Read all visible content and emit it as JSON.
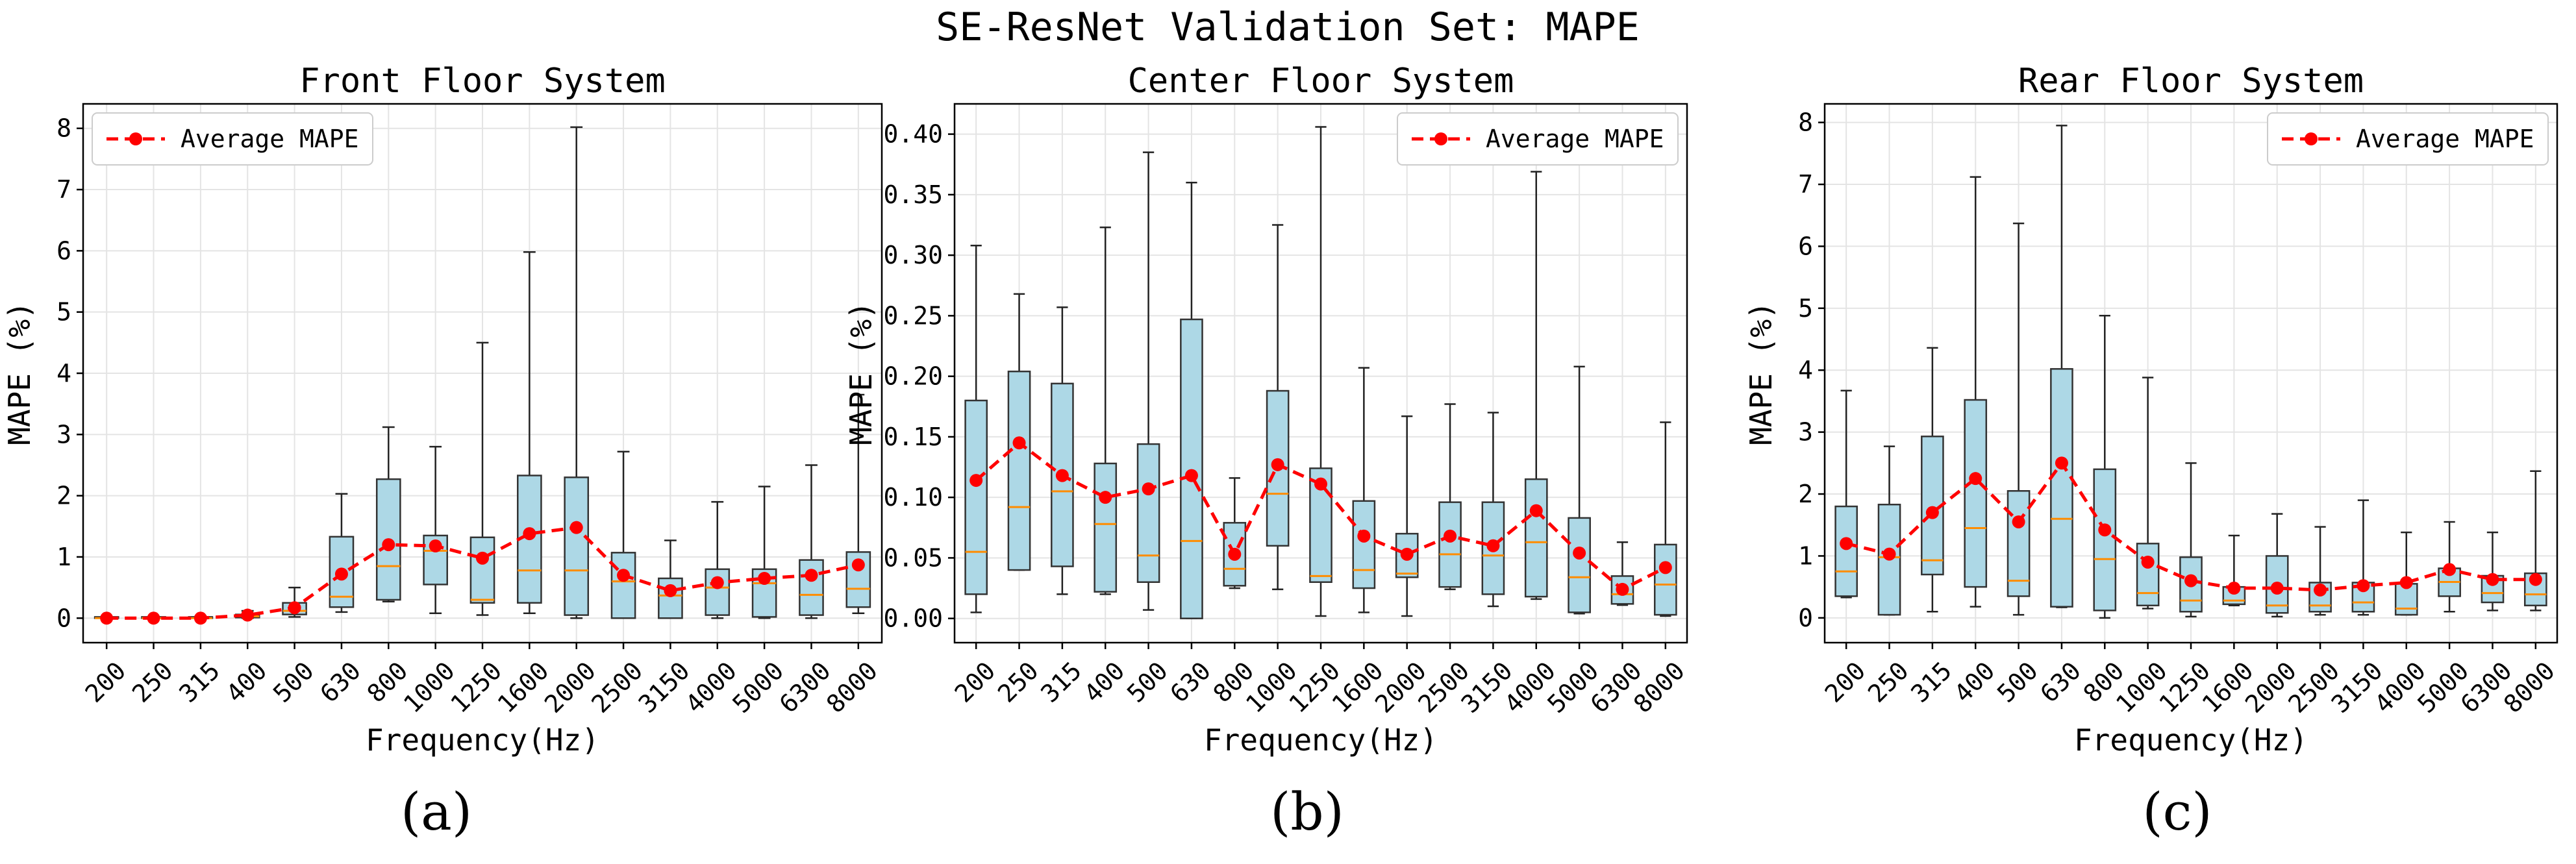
{
  "figure": {
    "suptitle": "SE-ResNet Validation Set: MAPE",
    "panel_labels": [
      "(a)",
      "(b)",
      "(c)"
    ]
  },
  "colors": {
    "box_fill": "#add8e6",
    "median": "#ff8c00",
    "average": "#ff0000"
  },
  "chart_data": [
    {
      "type": "box",
      "title": "Front Floor System",
      "xlabel": "Frequency(Hz)",
      "ylabel": "MAPE (%)",
      "legend": "Average MAPE",
      "legend_position": "upper-left",
      "ylim": [
        -0.4,
        8.4
      ],
      "yticks": [
        0,
        1,
        2,
        3,
        4,
        5,
        6,
        7,
        8
      ],
      "categories": [
        "200",
        "250",
        "315",
        "400",
        "500",
        "630",
        "800",
        "1000",
        "1250",
        "1600",
        "2000",
        "2500",
        "3150",
        "4000",
        "5000",
        "6300",
        "8000"
      ],
      "boxes": [
        {
          "min": 0.0,
          "q1": 0.0,
          "median": 0.0,
          "q3": 0.02,
          "max": 0.02
        },
        {
          "min": 0.0,
          "q1": 0.0,
          "median": 0.0,
          "q3": 0.02,
          "max": 0.02
        },
        {
          "min": 0.0,
          "q1": 0.0,
          "median": 0.0,
          "q3": 0.02,
          "max": 0.03
        },
        {
          "min": 0.0,
          "q1": 0.01,
          "median": 0.03,
          "q3": 0.06,
          "max": 0.12
        },
        {
          "min": 0.02,
          "q1": 0.06,
          "median": 0.12,
          "q3": 0.25,
          "max": 0.5
        },
        {
          "min": 0.1,
          "q1": 0.18,
          "median": 0.35,
          "q3": 1.33,
          "max": 2.03
        },
        {
          "min": 0.27,
          "q1": 0.3,
          "median": 0.85,
          "q3": 2.27,
          "max": 3.12
        },
        {
          "min": 0.08,
          "q1": 0.55,
          "median": 1.1,
          "q3": 1.35,
          "max": 2.8
        },
        {
          "min": 0.05,
          "q1": 0.25,
          "median": 0.3,
          "q3": 1.32,
          "max": 4.5
        },
        {
          "min": 0.08,
          "q1": 0.25,
          "median": 0.78,
          "q3": 2.33,
          "max": 5.98
        },
        {
          "min": 0.0,
          "q1": 0.05,
          "median": 0.78,
          "q3": 2.3,
          "max": 8.02
        },
        {
          "min": 0.0,
          "q1": 0.0,
          "median": 0.6,
          "q3": 1.07,
          "max": 2.72
        },
        {
          "min": 0.0,
          "q1": 0.0,
          "median": 0.37,
          "q3": 0.65,
          "max": 1.27
        },
        {
          "min": 0.0,
          "q1": 0.05,
          "median": 0.5,
          "q3": 0.8,
          "max": 1.9
        },
        {
          "min": 0.0,
          "q1": 0.02,
          "median": 0.57,
          "q3": 0.8,
          "max": 2.15
        },
        {
          "min": 0.0,
          "q1": 0.05,
          "median": 0.38,
          "q3": 0.95,
          "max": 2.5
        },
        {
          "min": 0.08,
          "q1": 0.18,
          "median": 0.48,
          "q3": 1.08,
          "max": 3.65
        }
      ],
      "average": [
        0.0,
        0.0,
        0.0,
        0.05,
        0.17,
        0.72,
        1.2,
        1.18,
        0.98,
        1.38,
        1.48,
        0.7,
        0.45,
        0.58,
        0.65,
        0.7,
        0.87
      ]
    },
    {
      "type": "box",
      "title": "Center Floor System",
      "xlabel": "Frequency(Hz)",
      "ylabel": "MAPE (%)",
      "legend": "Average MAPE",
      "legend_position": "upper-right",
      "ylim": [
        -0.02,
        0.425
      ],
      "yticks": [
        0.0,
        0.05,
        0.1,
        0.15,
        0.2,
        0.25,
        0.3,
        0.35,
        0.4
      ],
      "ytick_labels": [
        "0.00",
        "0.05",
        "0.10",
        "0.15",
        "0.20",
        "0.25",
        "0.30",
        "0.35",
        "0.40"
      ],
      "categories": [
        "200",
        "250",
        "315",
        "400",
        "500",
        "630",
        "800",
        "1000",
        "1250",
        "1600",
        "2000",
        "2500",
        "3150",
        "4000",
        "5000",
        "6300",
        "8000"
      ],
      "boxes": [
        {
          "min": 0.005,
          "q1": 0.02,
          "median": 0.055,
          "q3": 0.18,
          "max": 0.308
        },
        {
          "min": 0.04,
          "q1": 0.04,
          "median": 0.092,
          "q3": 0.204,
          "max": 0.268
        },
        {
          "min": 0.02,
          "q1": 0.043,
          "median": 0.105,
          "q3": 0.194,
          "max": 0.257
        },
        {
          "min": 0.02,
          "q1": 0.022,
          "median": 0.078,
          "q3": 0.128,
          "max": 0.323
        },
        {
          "min": 0.007,
          "q1": 0.03,
          "median": 0.052,
          "q3": 0.144,
          "max": 0.385
        },
        {
          "min": 0.0,
          "q1": 0.0,
          "median": 0.064,
          "q3": 0.247,
          "max": 0.36
        },
        {
          "min": 0.025,
          "q1": 0.027,
          "median": 0.041,
          "q3": 0.079,
          "max": 0.116
        },
        {
          "min": 0.024,
          "q1": 0.06,
          "median": 0.103,
          "q3": 0.188,
          "max": 0.325
        },
        {
          "min": 0.002,
          "q1": 0.03,
          "median": 0.035,
          "q3": 0.124,
          "max": 0.406
        },
        {
          "min": 0.005,
          "q1": 0.025,
          "median": 0.04,
          "q3": 0.097,
          "max": 0.207
        },
        {
          "min": 0.002,
          "q1": 0.034,
          "median": 0.037,
          "q3": 0.07,
          "max": 0.167
        },
        {
          "min": 0.024,
          "q1": 0.026,
          "median": 0.053,
          "q3": 0.096,
          "max": 0.177
        },
        {
          "min": 0.01,
          "q1": 0.02,
          "median": 0.052,
          "q3": 0.096,
          "max": 0.17
        },
        {
          "min": 0.016,
          "q1": 0.018,
          "median": 0.063,
          "q3": 0.115,
          "max": 0.369
        },
        {
          "min": 0.004,
          "q1": 0.005,
          "median": 0.034,
          "q3": 0.083,
          "max": 0.208
        },
        {
          "min": 0.011,
          "q1": 0.012,
          "median": 0.02,
          "q3": 0.035,
          "max": 0.063
        },
        {
          "min": 0.002,
          "q1": 0.003,
          "median": 0.028,
          "q3": 0.061,
          "max": 0.162
        }
      ],
      "average": [
        0.114,
        0.145,
        0.118,
        0.1,
        0.107,
        0.118,
        0.053,
        0.127,
        0.111,
        0.068,
        0.053,
        0.068,
        0.06,
        0.089,
        0.054,
        0.024,
        0.042
      ]
    },
    {
      "type": "box",
      "title": "Rear Floor System",
      "xlabel": "Frequency(Hz)",
      "ylabel": "MAPE (%)",
      "legend": "Average MAPE",
      "legend_position": "upper-right",
      "ylim": [
        -0.4,
        8.3
      ],
      "yticks": [
        0,
        1,
        2,
        3,
        4,
        5,
        6,
        7,
        8
      ],
      "categories": [
        "200",
        "250",
        "315",
        "400",
        "500",
        "630",
        "800",
        "1000",
        "1250",
        "1600",
        "2000",
        "2500",
        "3150",
        "4000",
        "5000",
        "6300",
        "8000"
      ],
      "boxes": [
        {
          "min": 0.33,
          "q1": 0.35,
          "median": 0.75,
          "q3": 1.8,
          "max": 3.67
        },
        {
          "min": 0.05,
          "q1": 0.05,
          "median": 0.98,
          "q3": 1.83,
          "max": 2.77
        },
        {
          "min": 0.1,
          "q1": 0.7,
          "median": 0.93,
          "q3": 2.93,
          "max": 4.36
        },
        {
          "min": 0.18,
          "q1": 0.5,
          "median": 1.45,
          "q3": 3.52,
          "max": 7.12
        },
        {
          "min": 0.05,
          "q1": 0.35,
          "median": 0.6,
          "q3": 2.05,
          "max": 6.37
        },
        {
          "min": 0.17,
          "q1": 0.18,
          "median": 1.6,
          "q3": 4.02,
          "max": 7.95
        },
        {
          "min": 0.0,
          "q1": 0.12,
          "median": 0.95,
          "q3": 2.4,
          "max": 4.88
        },
        {
          "min": 0.15,
          "q1": 0.2,
          "median": 0.4,
          "q3": 1.2,
          "max": 3.88
        },
        {
          "min": 0.02,
          "q1": 0.1,
          "median": 0.28,
          "q3": 0.98,
          "max": 2.5
        },
        {
          "min": 0.2,
          "q1": 0.22,
          "median": 0.28,
          "q3": 0.5,
          "max": 1.33
        },
        {
          "min": 0.02,
          "q1": 0.08,
          "median": 0.2,
          "q3": 1.0,
          "max": 1.68
        },
        {
          "min": 0.05,
          "q1": 0.1,
          "median": 0.2,
          "q3": 0.57,
          "max": 1.47
        },
        {
          "min": 0.05,
          "q1": 0.1,
          "median": 0.25,
          "q3": 0.57,
          "max": 1.9
        },
        {
          "min": 0.05,
          "q1": 0.05,
          "median": 0.15,
          "q3": 0.55,
          "max": 1.38
        },
        {
          "min": 0.1,
          "q1": 0.35,
          "median": 0.58,
          "q3": 0.8,
          "max": 1.55
        },
        {
          "min": 0.12,
          "q1": 0.25,
          "median": 0.4,
          "q3": 0.68,
          "max": 1.38
        },
        {
          "min": 0.12,
          "q1": 0.2,
          "median": 0.38,
          "q3": 0.72,
          "max": 2.37
        }
      ],
      "average": [
        1.2,
        1.03,
        1.7,
        2.25,
        1.55,
        2.5,
        1.42,
        0.9,
        0.6,
        0.48,
        0.48,
        0.45,
        0.52,
        0.57,
        0.78,
        0.62,
        0.62
      ]
    }
  ]
}
